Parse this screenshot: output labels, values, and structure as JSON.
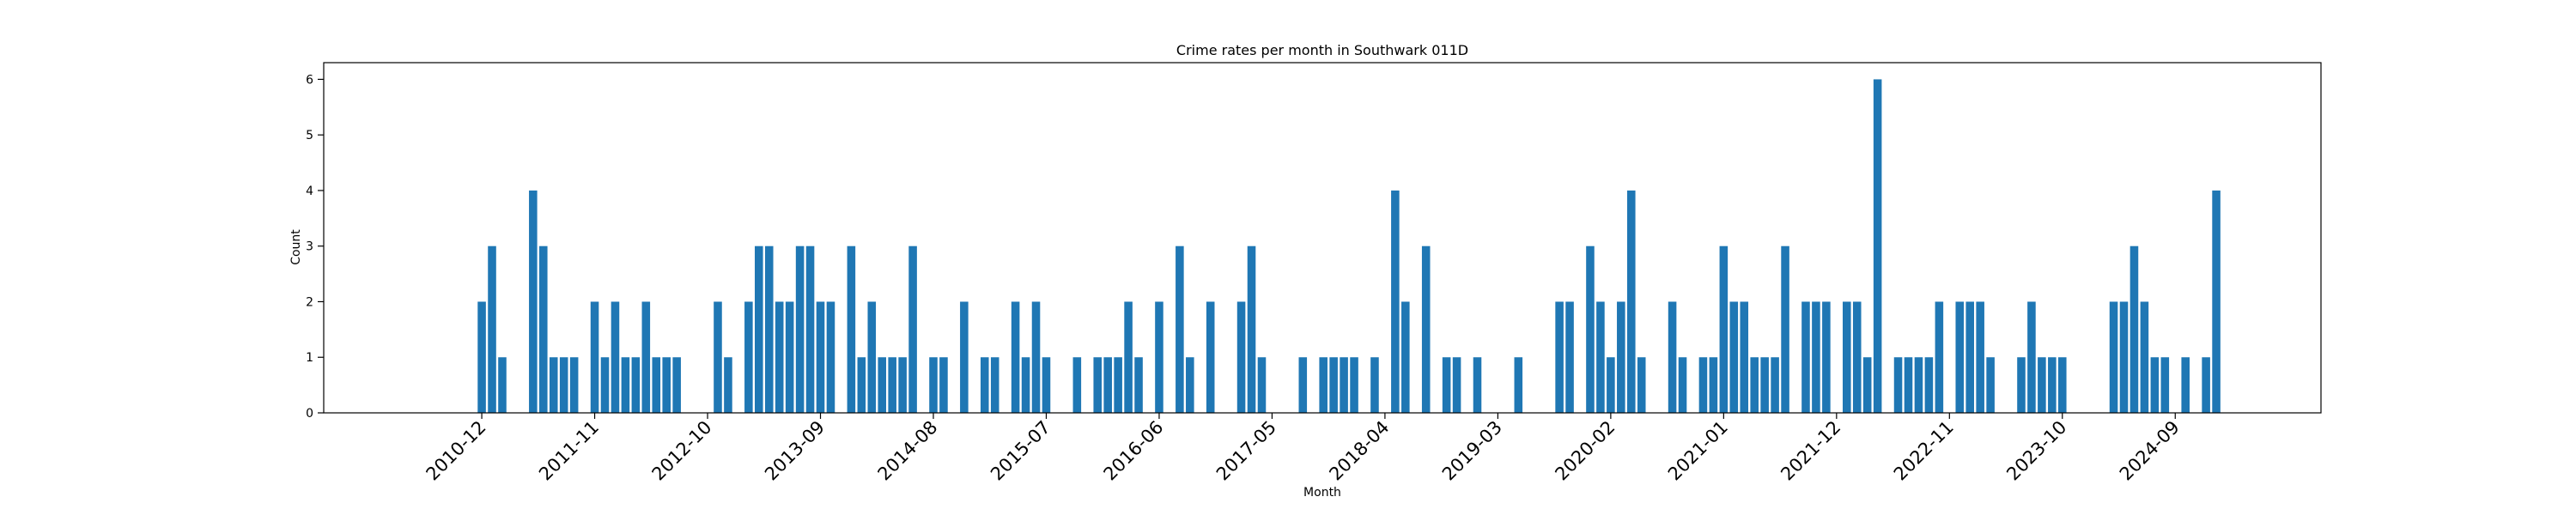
{
  "chart_data": {
    "type": "bar",
    "title": "Crime rates per month in Southwark 011D",
    "xlabel": "Month",
    "ylabel": "Count",
    "ylim": [
      0,
      6.3
    ],
    "y_ticks": [
      0,
      1,
      2,
      3,
      4,
      5,
      6
    ],
    "x_tick_labels": [
      "2010-12",
      "2011-11",
      "2012-10",
      "2013-09",
      "2014-08",
      "2015-07",
      "2016-06",
      "2017-05",
      "2018-04",
      "2019-03",
      "2020-02",
      "2021-01",
      "2021-12",
      "2022-11",
      "2023-10",
      "2024-09"
    ],
    "bar_color": "#1f77b4",
    "grid": false,
    "series": [
      {
        "values": [
          {
            "x": "2010-12",
            "y": 2
          },
          {
            "x": "2011-01",
            "y": 3
          },
          {
            "x": "2011-02",
            "y": 1
          },
          {
            "x": "2011-05",
            "y": 4
          },
          {
            "x": "2011-06",
            "y": 3
          },
          {
            "x": "2011-07",
            "y": 1
          },
          {
            "x": "2011-08",
            "y": 1
          },
          {
            "x": "2011-09",
            "y": 1
          },
          {
            "x": "2011-11",
            "y": 2
          },
          {
            "x": "2011-12",
            "y": 1
          },
          {
            "x": "2012-01",
            "y": 2
          },
          {
            "x": "2012-02",
            "y": 1
          },
          {
            "x": "2012-03",
            "y": 1
          },
          {
            "x": "2012-04",
            "y": 2
          },
          {
            "x": "2012-05",
            "y": 1
          },
          {
            "x": "2012-06",
            "y": 1
          },
          {
            "x": "2012-07",
            "y": 1
          },
          {
            "x": "2012-11",
            "y": 2
          },
          {
            "x": "2012-12",
            "y": 1
          },
          {
            "x": "2013-02",
            "y": 2
          },
          {
            "x": "2013-03",
            "y": 3
          },
          {
            "x": "2013-04",
            "y": 3
          },
          {
            "x": "2013-05",
            "y": 2
          },
          {
            "x": "2013-06",
            "y": 2
          },
          {
            "x": "2013-07",
            "y": 3
          },
          {
            "x": "2013-08",
            "y": 3
          },
          {
            "x": "2013-09",
            "y": 2
          },
          {
            "x": "2013-10",
            "y": 2
          },
          {
            "x": "2013-12",
            "y": 3
          },
          {
            "x": "2014-01",
            "y": 1
          },
          {
            "x": "2014-02",
            "y": 2
          },
          {
            "x": "2014-03",
            "y": 1
          },
          {
            "x": "2014-04",
            "y": 1
          },
          {
            "x": "2014-05",
            "y": 1
          },
          {
            "x": "2014-06",
            "y": 3
          },
          {
            "x": "2014-08",
            "y": 1
          },
          {
            "x": "2014-09",
            "y": 1
          },
          {
            "x": "2014-11",
            "y": 2
          },
          {
            "x": "2015-01",
            "y": 1
          },
          {
            "x": "2015-02",
            "y": 1
          },
          {
            "x": "2015-04",
            "y": 2
          },
          {
            "x": "2015-05",
            "y": 1
          },
          {
            "x": "2015-06",
            "y": 2
          },
          {
            "x": "2015-07",
            "y": 1
          },
          {
            "x": "2015-10",
            "y": 1
          },
          {
            "x": "2015-12",
            "y": 1
          },
          {
            "x": "2016-01",
            "y": 1
          },
          {
            "x": "2016-02",
            "y": 1
          },
          {
            "x": "2016-03",
            "y": 2
          },
          {
            "x": "2016-04",
            "y": 1
          },
          {
            "x": "2016-06",
            "y": 2
          },
          {
            "x": "2016-08",
            "y": 3
          },
          {
            "x": "2016-09",
            "y": 1
          },
          {
            "x": "2016-11",
            "y": 2
          },
          {
            "x": "2017-02",
            "y": 2
          },
          {
            "x": "2017-03",
            "y": 3
          },
          {
            "x": "2017-04",
            "y": 1
          },
          {
            "x": "2017-08",
            "y": 1
          },
          {
            "x": "2017-10",
            "y": 1
          },
          {
            "x": "2017-11",
            "y": 1
          },
          {
            "x": "2017-12",
            "y": 1
          },
          {
            "x": "2018-01",
            "y": 1
          },
          {
            "x": "2018-03",
            "y": 1
          },
          {
            "x": "2018-05",
            "y": 4
          },
          {
            "x": "2018-06",
            "y": 2
          },
          {
            "x": "2018-08",
            "y": 3
          },
          {
            "x": "2018-10",
            "y": 1
          },
          {
            "x": "2018-11",
            "y": 1
          },
          {
            "x": "2019-01",
            "y": 1
          },
          {
            "x": "2019-05",
            "y": 1
          },
          {
            "x": "2019-09",
            "y": 2
          },
          {
            "x": "2019-10",
            "y": 2
          },
          {
            "x": "2019-12",
            "y": 3
          },
          {
            "x": "2020-01",
            "y": 2
          },
          {
            "x": "2020-02",
            "y": 1
          },
          {
            "x": "2020-03",
            "y": 2
          },
          {
            "x": "2020-04",
            "y": 4
          },
          {
            "x": "2020-05",
            "y": 1
          },
          {
            "x": "2020-08",
            "y": 2
          },
          {
            "x": "2020-09",
            "y": 1
          },
          {
            "x": "2020-11",
            "y": 1
          },
          {
            "x": "2020-12",
            "y": 1
          },
          {
            "x": "2021-01",
            "y": 3
          },
          {
            "x": "2021-02",
            "y": 2
          },
          {
            "x": "2021-03",
            "y": 2
          },
          {
            "x": "2021-04",
            "y": 1
          },
          {
            "x": "2021-05",
            "y": 1
          },
          {
            "x": "2021-06",
            "y": 1
          },
          {
            "x": "2021-07",
            "y": 3
          },
          {
            "x": "2021-09",
            "y": 2
          },
          {
            "x": "2021-10",
            "y": 2
          },
          {
            "x": "2021-11",
            "y": 2
          },
          {
            "x": "2022-01",
            "y": 2
          },
          {
            "x": "2022-02",
            "y": 2
          },
          {
            "x": "2022-03",
            "y": 1
          },
          {
            "x": "2022-04",
            "y": 6
          },
          {
            "x": "2022-06",
            "y": 1
          },
          {
            "x": "2022-07",
            "y": 1
          },
          {
            "x": "2022-08",
            "y": 1
          },
          {
            "x": "2022-09",
            "y": 1
          },
          {
            "x": "2022-10",
            "y": 2
          },
          {
            "x": "2022-12",
            "y": 2
          },
          {
            "x": "2023-01",
            "y": 2
          },
          {
            "x": "2023-02",
            "y": 2
          },
          {
            "x": "2023-03",
            "y": 1
          },
          {
            "x": "2023-06",
            "y": 1
          },
          {
            "x": "2023-07",
            "y": 2
          },
          {
            "x": "2023-08",
            "y": 1
          },
          {
            "x": "2023-09",
            "y": 1
          },
          {
            "x": "2023-10",
            "y": 1
          },
          {
            "x": "2024-03",
            "y": 2
          },
          {
            "x": "2024-04",
            "y": 2
          },
          {
            "x": "2024-05",
            "y": 3
          },
          {
            "x": "2024-06",
            "y": 2
          },
          {
            "x": "2024-07",
            "y": 1
          },
          {
            "x": "2024-08",
            "y": 1
          },
          {
            "x": "2024-10",
            "y": 1
          },
          {
            "x": "2024-12",
            "y": 1
          },
          {
            "x": "2025-01",
            "y": 4
          }
        ]
      }
    ]
  }
}
